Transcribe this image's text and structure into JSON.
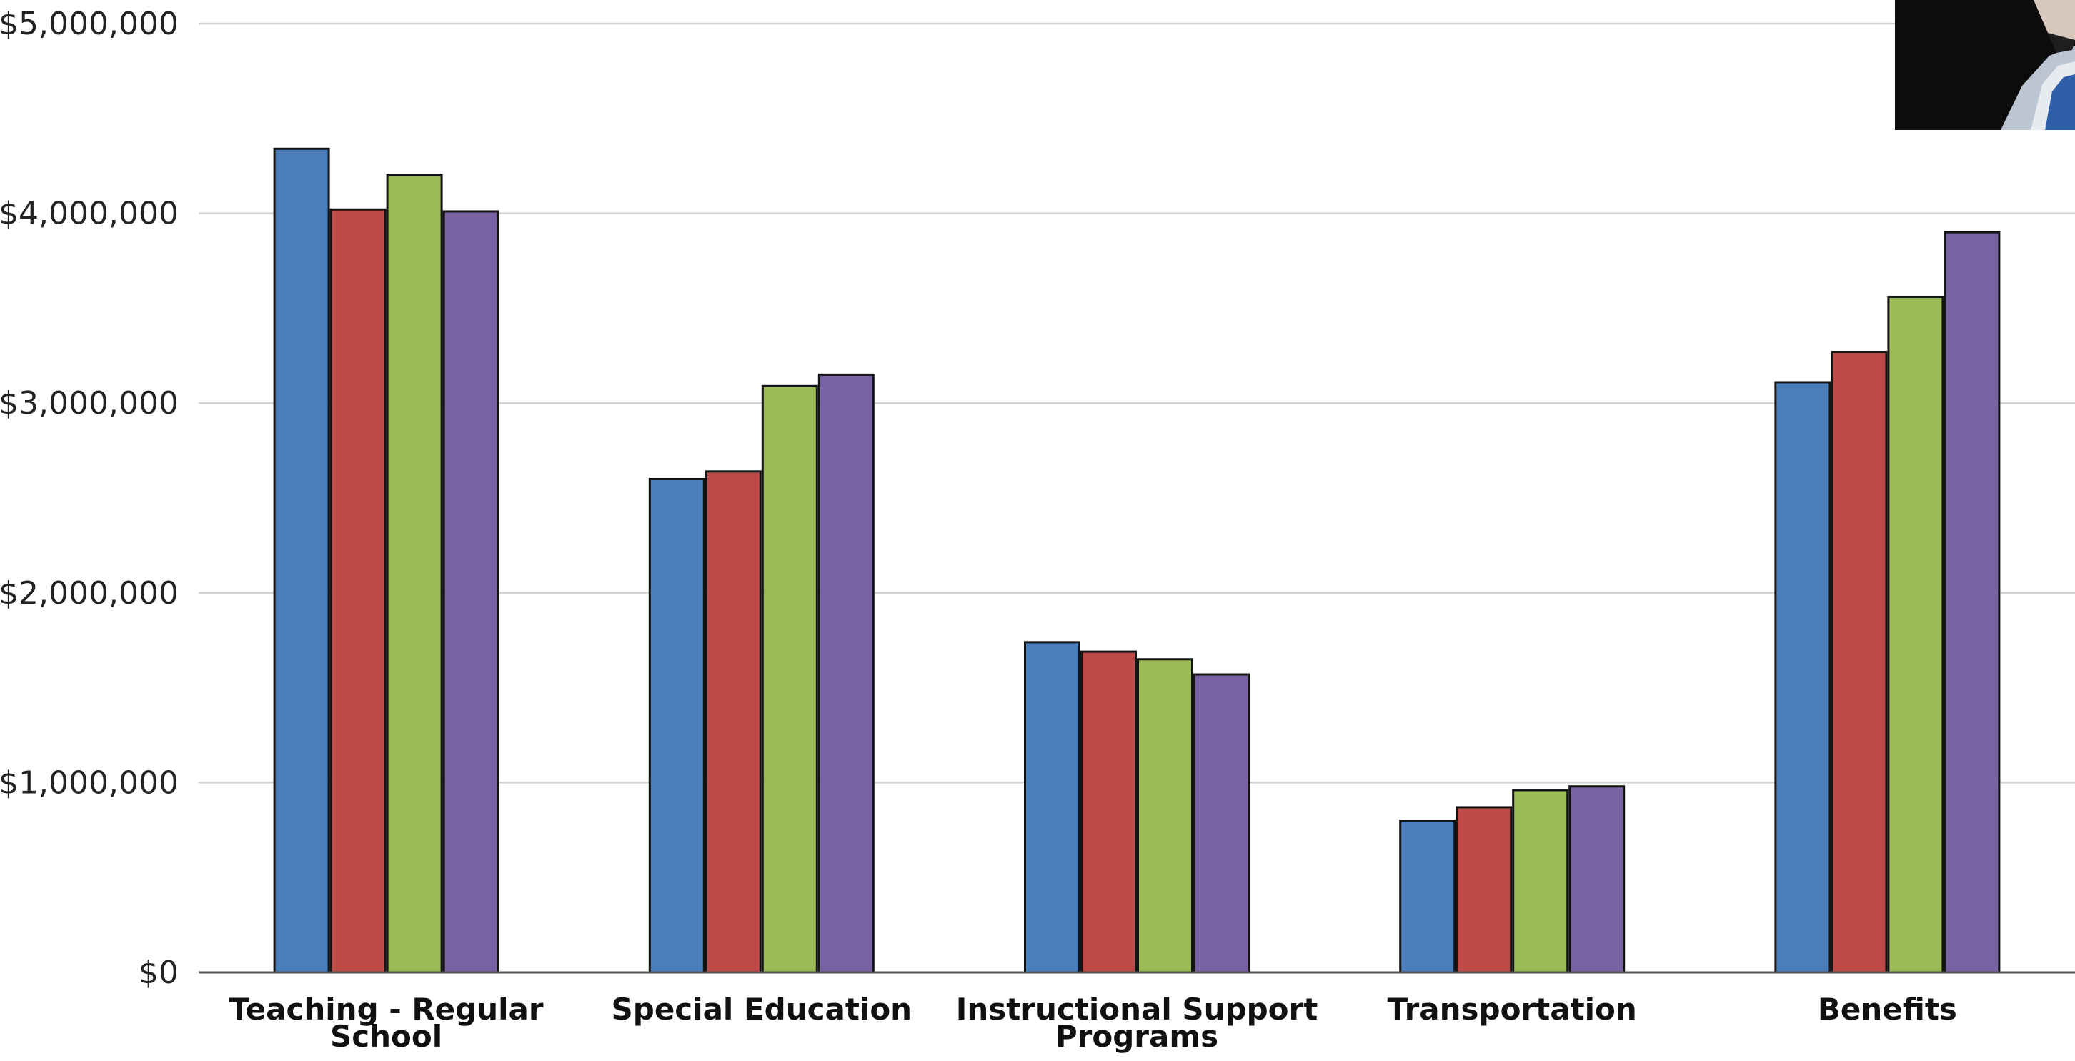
{
  "chart_data": {
    "type": "bar",
    "categories": [
      [
        "Teaching - Regular",
        "School"
      ],
      [
        "Special Education"
      ],
      [
        "Instructional Support",
        "Programs"
      ],
      [
        "Transportation"
      ],
      [
        "Benefits"
      ]
    ],
    "series": [
      {
        "color": "#4a7ebb",
        "values": [
          4340000,
          2600000,
          1740000,
          800000,
          3110000
        ]
      },
      {
        "color": "#be4b48",
        "values": [
          4020000,
          2640000,
          1690000,
          870000,
          3270000
        ]
      },
      {
        "color": "#9bbb59",
        "values": [
          4200000,
          3090000,
          1650000,
          960000,
          3560000
        ]
      },
      {
        "color": "#7862a4",
        "values": [
          4010000,
          3150000,
          1570000,
          980000,
          3900000
        ]
      }
    ],
    "yticks": [
      "$0",
      "$1,000,000",
      "$2,000,000",
      "$3,000,000",
      "$4,000,000",
      "$5,000,000"
    ],
    "ytick_values": [
      0,
      1000000,
      2000000,
      3000000,
      4000000,
      5000000
    ],
    "ylim": [
      0,
      5000000
    ],
    "grid": true,
    "legend": "none"
  }
}
